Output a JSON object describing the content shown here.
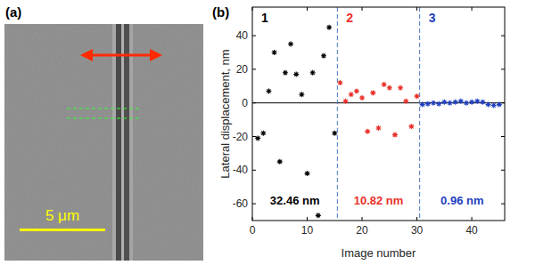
{
  "image_panel": {
    "label": "(a)",
    "scale_bar_label": "5 μm"
  },
  "chart_data": {
    "type": "scatter",
    "title": "(b)",
    "x_label": "Image number",
    "y_label": "Lateral displacement, nm",
    "xlim": [
      0,
      46
    ],
    "ylim": [
      -70,
      57
    ],
    "xticks": [
      0,
      10,
      20,
      30,
      40
    ],
    "yticks": [
      -60,
      -40,
      -20,
      0,
      20,
      40
    ],
    "boundaries": [
      15.5,
      30.5
    ],
    "reference_line": 0,
    "series": [
      {
        "name": "1",
        "color": "#000000",
        "marker": "star",
        "annotation": "32.46 nm",
        "x": [
          1,
          2,
          3,
          4,
          5,
          6,
          7,
          8,
          9,
          10,
          11,
          12,
          13,
          14,
          15
        ],
        "values": [
          -21,
          -18,
          7,
          30,
          -35,
          18,
          35,
          17,
          5,
          -42,
          18,
          -67,
          28,
          45,
          -18
        ]
      },
      {
        "name": "2",
        "color": "#e8302a",
        "marker": "star",
        "annotation": "10.82 nm",
        "x": [
          16,
          17,
          18,
          19,
          20,
          21,
          22,
          23,
          24,
          25,
          26,
          27,
          28,
          29,
          30
        ],
        "values": [
          12,
          1,
          5,
          7,
          3,
          -17,
          6,
          -15,
          11,
          9,
          -19,
          9,
          1,
          -14,
          4
        ]
      },
      {
        "name": "3",
        "color": "#1f3fbf",
        "marker": "star",
        "annotation": "0.96 nm",
        "x": [
          31,
          32,
          33,
          34,
          35,
          36,
          37,
          38,
          39,
          40,
          41,
          42,
          43,
          44,
          45
        ],
        "values": [
          -1,
          -0.5,
          0,
          -0.5,
          0.5,
          0,
          0.5,
          1,
          0,
          0.5,
          1,
          0.5,
          -1,
          -1.5,
          -1
        ]
      }
    ]
  }
}
